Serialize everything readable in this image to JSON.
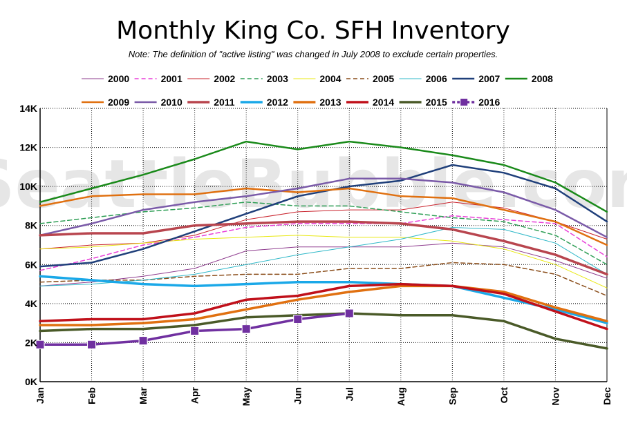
{
  "chart_data": {
    "type": "line",
    "title": "Monthly King Co. SFH Inventory",
    "subtitle": "Note: The definition of \"active listing\" was changed in July 2008 to exclude certain properties.",
    "watermark": "SeattleBubble.com",
    "xlabel": "",
    "ylabel": "",
    "categories": [
      "Jan",
      "Feb",
      "Mar",
      "Apr",
      "May",
      "Jun",
      "Jul",
      "Aug",
      "Sep",
      "Oct",
      "Nov",
      "Dec"
    ],
    "ylim": [
      0,
      14000
    ],
    "yticks": [
      0,
      2000,
      4000,
      6000,
      8000,
      10000,
      12000,
      14000
    ],
    "ytick_labels": [
      "0K",
      "2K",
      "4K",
      "6K",
      "8K",
      "10K",
      "12K",
      "14K"
    ],
    "grid": true,
    "legend_position": "top",
    "series": [
      {
        "name": "2000",
        "color": "#8e3b8e",
        "width": 1,
        "dash": "",
        "marker": false,
        "values": [
          4900,
          5100,
          5400,
          5800,
          6700,
          6900,
          6900,
          6900,
          7100,
          6900,
          6200,
          5300
        ]
      },
      {
        "name": "2001",
        "color": "#e83fd8",
        "width": 1.5,
        "dash": "6,4",
        "marker": false,
        "values": [
          5700,
          6300,
          7000,
          7400,
          7900,
          8100,
          8100,
          8100,
          8500,
          8300,
          8100,
          6400
        ]
      },
      {
        "name": "2002",
        "color": "#c8202a",
        "width": 1,
        "dash": "",
        "marker": false,
        "values": [
          6800,
          7000,
          7100,
          7500,
          8300,
          8700,
          8800,
          8800,
          9200,
          8900,
          8200,
          7300
        ]
      },
      {
        "name": "2003",
        "color": "#2e9e55",
        "width": 1.5,
        "dash": "6,4",
        "marker": false,
        "values": [
          8100,
          8400,
          8700,
          8900,
          9200,
          9000,
          9000,
          8700,
          8400,
          8200,
          7500,
          6000
        ]
      },
      {
        "name": "2004",
        "color": "#e8e810",
        "width": 1,
        "dash": "",
        "marker": false,
        "values": [
          6800,
          6900,
          7100,
          7300,
          7400,
          7500,
          7400,
          7400,
          7200,
          6800,
          6000,
          4800
        ]
      },
      {
        "name": "2005",
        "color": "#8a4d1a",
        "width": 1.5,
        "dash": "6,4",
        "marker": false,
        "values": [
          5100,
          5200,
          5200,
          5400,
          5500,
          5500,
          5800,
          5800,
          6100,
          6000,
          5500,
          4400
        ]
      },
      {
        "name": "2006",
        "color": "#2fb8c8",
        "width": 1,
        "dash": "",
        "marker": false,
        "values": [
          4900,
          5000,
          5200,
          5500,
          6000,
          6500,
          6900,
          7300,
          7900,
          7800,
          7100,
          5500
        ]
      },
      {
        "name": "2007",
        "color": "#1f3f7a",
        "width": 2.5,
        "dash": "",
        "marker": false,
        "values": [
          5900,
          6100,
          6800,
          7700,
          8600,
          9500,
          10000,
          10300,
          11100,
          10700,
          9900,
          8200
        ]
      },
      {
        "name": "2008",
        "color": "#1a8a1a",
        "width": 2.5,
        "dash": "",
        "marker": false,
        "values": [
          9200,
          9900,
          10600,
          11400,
          12300,
          11900,
          12300,
          12000,
          11600,
          11100,
          10200,
          8700
        ]
      },
      {
        "name": "2009",
        "color": "#e07010",
        "width": 2.5,
        "dash": "",
        "marker": false,
        "values": [
          9000,
          9500,
          9600,
          9600,
          9900,
          9700,
          9900,
          9500,
          9400,
          8800,
          8200,
          7000
        ]
      },
      {
        "name": "2010",
        "color": "#7a5aa8",
        "width": 2.5,
        "dash": "",
        "marker": false,
        "values": [
          7500,
          8100,
          8800,
          9200,
          9500,
          9900,
          10400,
          10400,
          10200,
          9700,
          8800,
          7400
        ]
      },
      {
        "name": "2011",
        "color": "#b8454e",
        "width": 3.5,
        "dash": "",
        "marker": false,
        "values": [
          7500,
          7600,
          7600,
          8000,
          8100,
          8200,
          8200,
          8100,
          7800,
          7200,
          6500,
          5500
        ]
      },
      {
        "name": "2012",
        "color": "#1aa8e8",
        "width": 3.5,
        "dash": "",
        "marker": false,
        "values": [
          5400,
          5200,
          5000,
          4900,
          5000,
          5100,
          5100,
          5000,
          4900,
          4300,
          3700,
          3000
        ]
      },
      {
        "name": "2013",
        "color": "#e07010",
        "width": 3.5,
        "dash": "",
        "marker": false,
        "values": [
          2900,
          2900,
          3000,
          3200,
          3700,
          4200,
          4600,
          4900,
          4900,
          4600,
          3800,
          3100
        ]
      },
      {
        "name": "2014",
        "color": "#c0101a",
        "width": 3.5,
        "dash": "",
        "marker": false,
        "values": [
          3100,
          3200,
          3200,
          3500,
          4200,
          4400,
          4900,
          5000,
          4900,
          4500,
          3600,
          2700
        ]
      },
      {
        "name": "2015",
        "color": "#4a5a28",
        "width": 3.5,
        "dash": "",
        "marker": false,
        "values": [
          2600,
          2700,
          2700,
          2900,
          3300,
          3400,
          3500,
          3400,
          3400,
          3100,
          2200,
          1700
        ]
      },
      {
        "name": "2016",
        "color": "#7030a0",
        "width": 3.5,
        "dash": "4,3",
        "marker": true,
        "values": [
          1900,
          1900,
          2100,
          2600,
          2700,
          3200,
          3500,
          null,
          null,
          null,
          null,
          null
        ]
      }
    ]
  }
}
